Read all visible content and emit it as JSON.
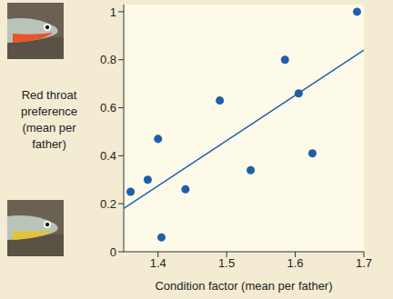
{
  "chart_data": {
    "type": "scatter",
    "x_label": "Condition factor (mean per father)",
    "y_label": "Red throat preference (mean per father)",
    "x": [
      1.36,
      1.385,
      1.4,
      1.405,
      1.44,
      1.49,
      1.535,
      1.585,
      1.605,
      1.625,
      1.69
    ],
    "values": [
      0.25,
      0.3,
      0.47,
      0.06,
      0.26,
      0.63,
      0.34,
      0.8,
      0.66,
      0.41,
      1.0
    ],
    "color": "#1f5fa8",
    "xlim": [
      1.35,
      1.7
    ],
    "xticks": [
      1.4,
      1.5,
      1.6,
      1.7
    ],
    "ylim": [
      0,
      1.03
    ],
    "yticks": [
      0,
      0.2,
      0.4,
      0.6,
      0.8,
      1
    ],
    "fit": {
      "x": [
        1.35,
        1.7
      ],
      "y": [
        0.18,
        0.84
      ]
    },
    "grid": false
  }
}
